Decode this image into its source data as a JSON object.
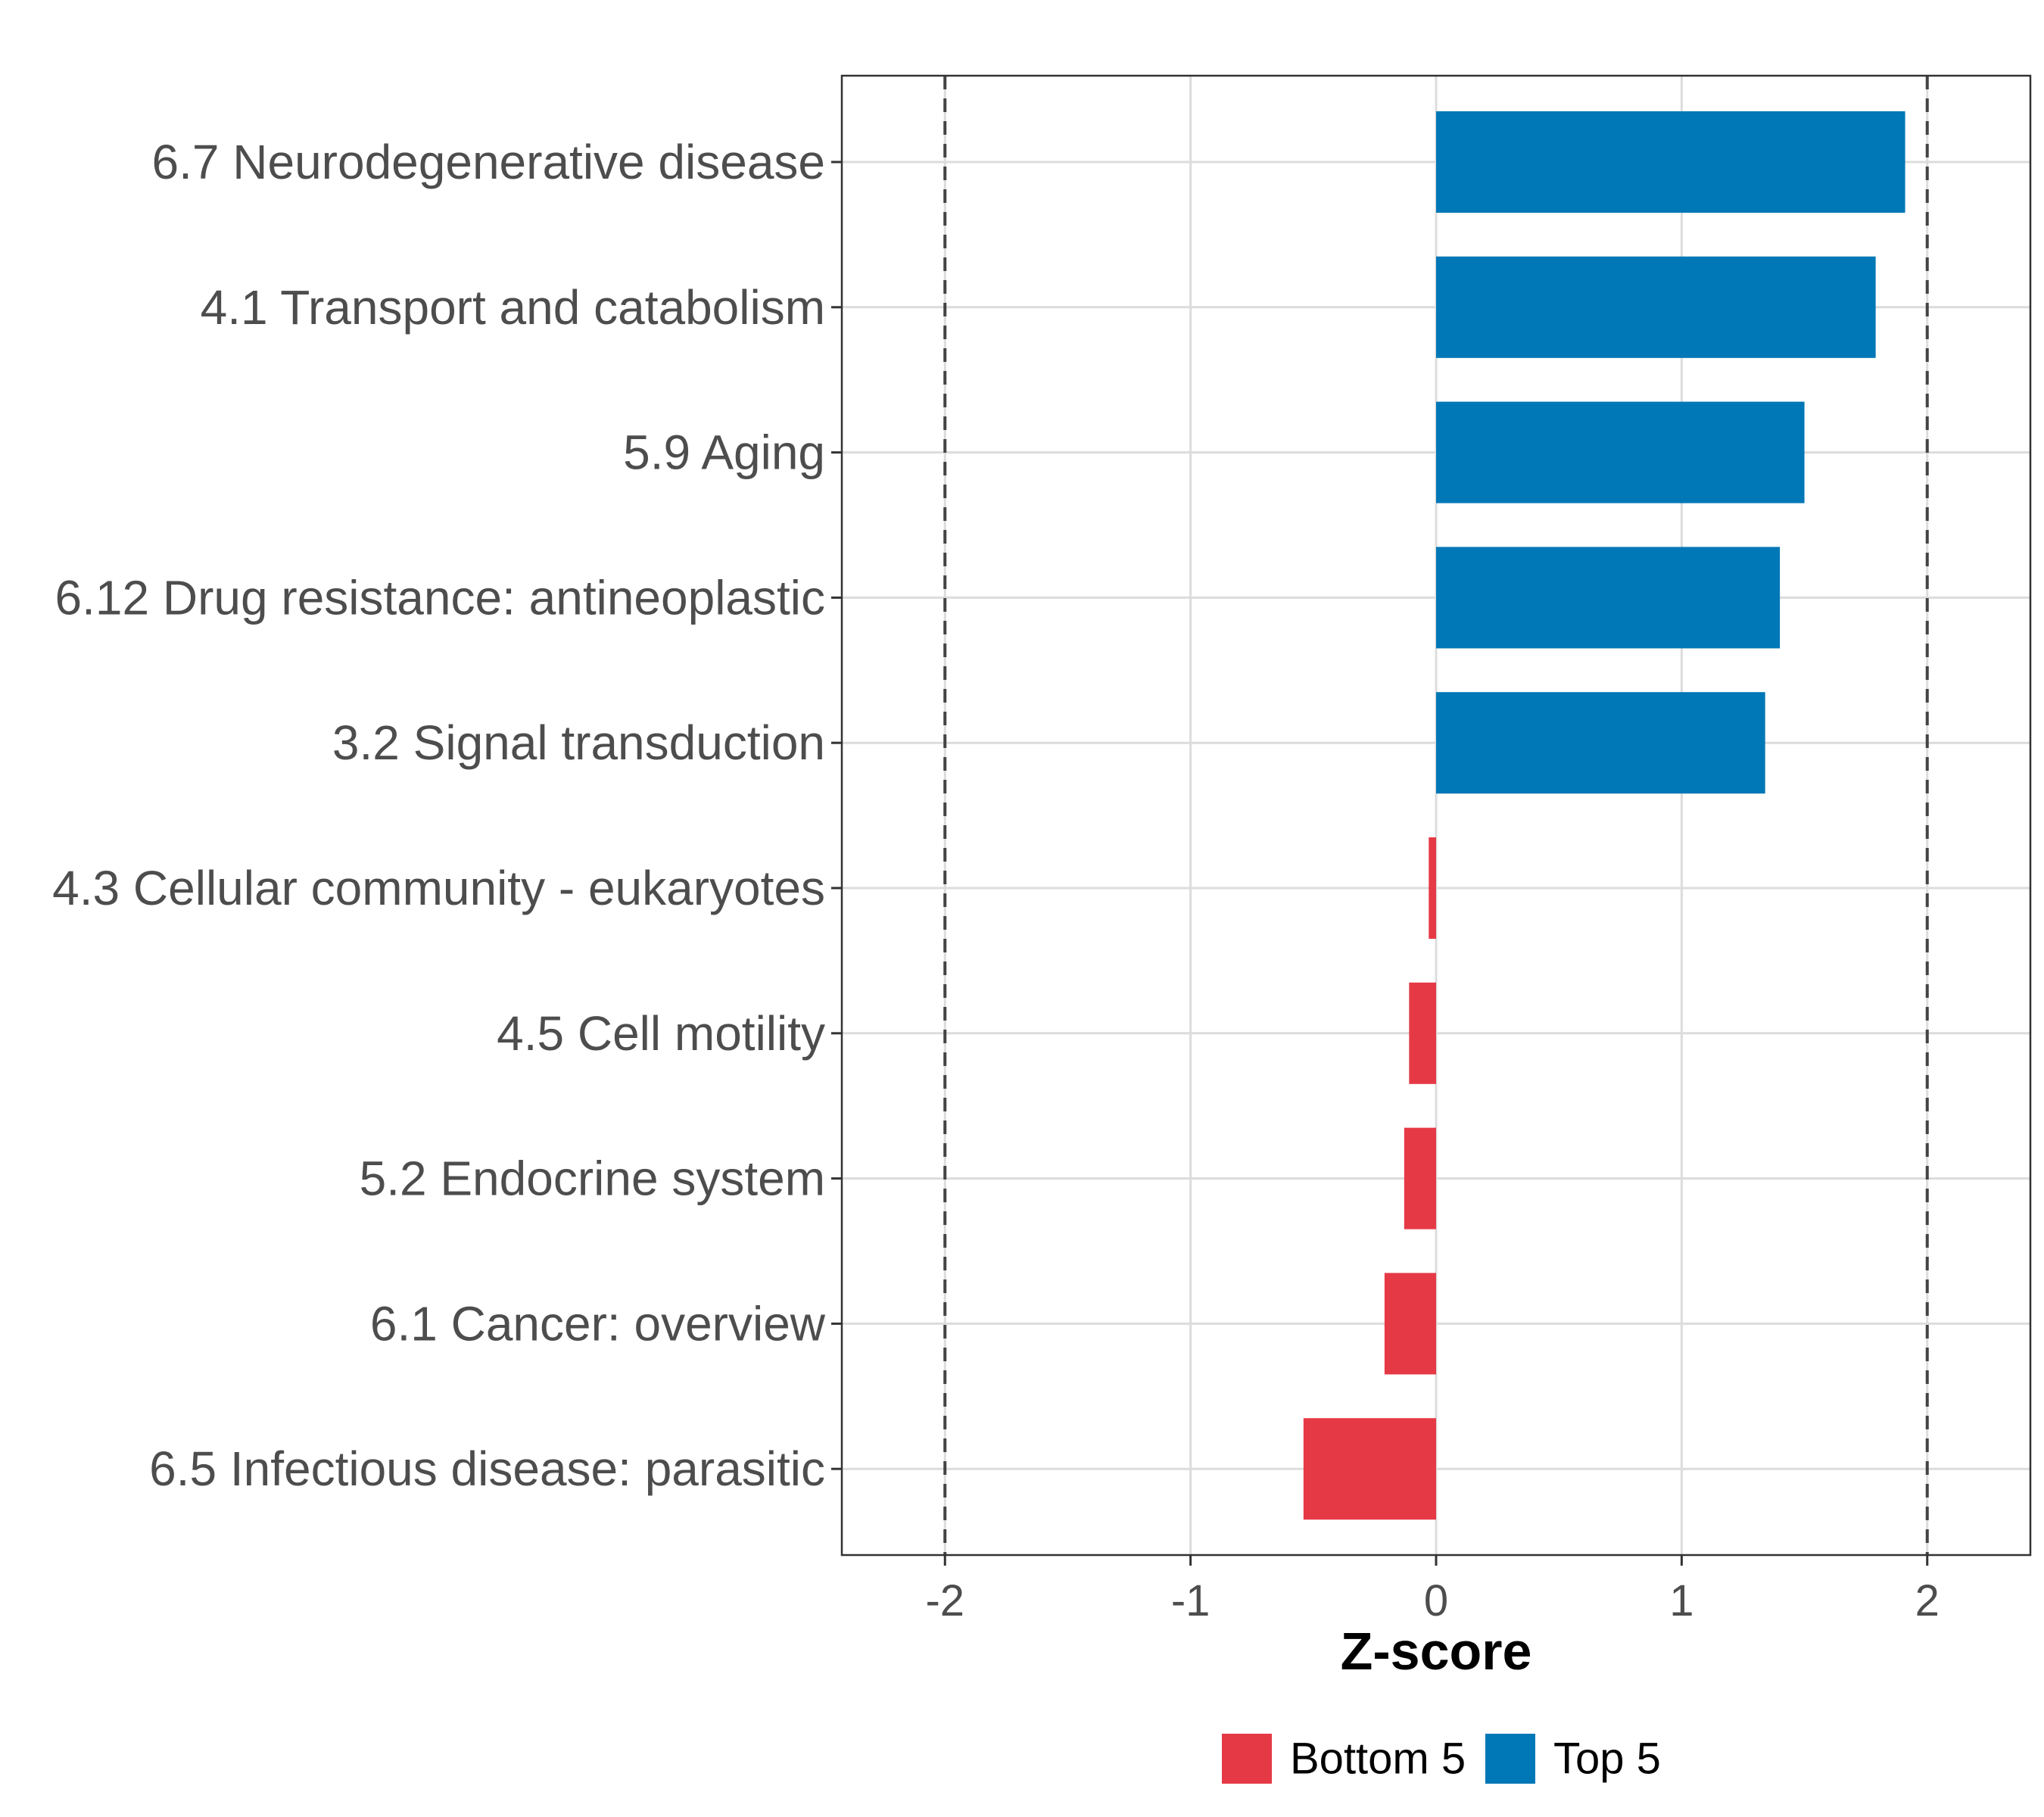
{
  "chart_data": {
    "type": "bar",
    "orientation": "horizontal",
    "title": "",
    "xlabel": "Z-score",
    "ylabel": "",
    "xlim": [
      -2.42,
      2.42
    ],
    "xticks": [
      -2,
      -1,
      0,
      1,
      2
    ],
    "xtick_labels": [
      "-2",
      "-1",
      "0",
      "1",
      "2"
    ],
    "reference_lines": [
      -2,
      2
    ],
    "grid": true,
    "legend_position": "bottom",
    "categories": [
      "6.7 Neurodegenerative disease",
      "4.1 Transport and catabolism",
      "5.9 Aging",
      "6.12 Drug resistance: antineoplastic",
      "3.2 Signal transduction",
      "4.3 Cellular community - eukaryotes",
      "4.5 Cell motility",
      "5.2 Endocrine system",
      "6.1 Cancer: overview",
      "6.5 Infectious disease: parasitic"
    ],
    "values": [
      1.91,
      1.79,
      1.5,
      1.4,
      1.34,
      -0.03,
      -0.11,
      -0.13,
      -0.21,
      -0.54
    ],
    "groups": [
      "Top 5",
      "Top 5",
      "Top 5",
      "Top 5",
      "Top 5",
      "Bottom 5",
      "Bottom 5",
      "Bottom 5",
      "Bottom 5",
      "Bottom 5"
    ],
    "legend": [
      {
        "name": "Bottom 5",
        "color": "#e63946"
      },
      {
        "name": "Top 5",
        "color": "#0077b6"
      }
    ]
  }
}
